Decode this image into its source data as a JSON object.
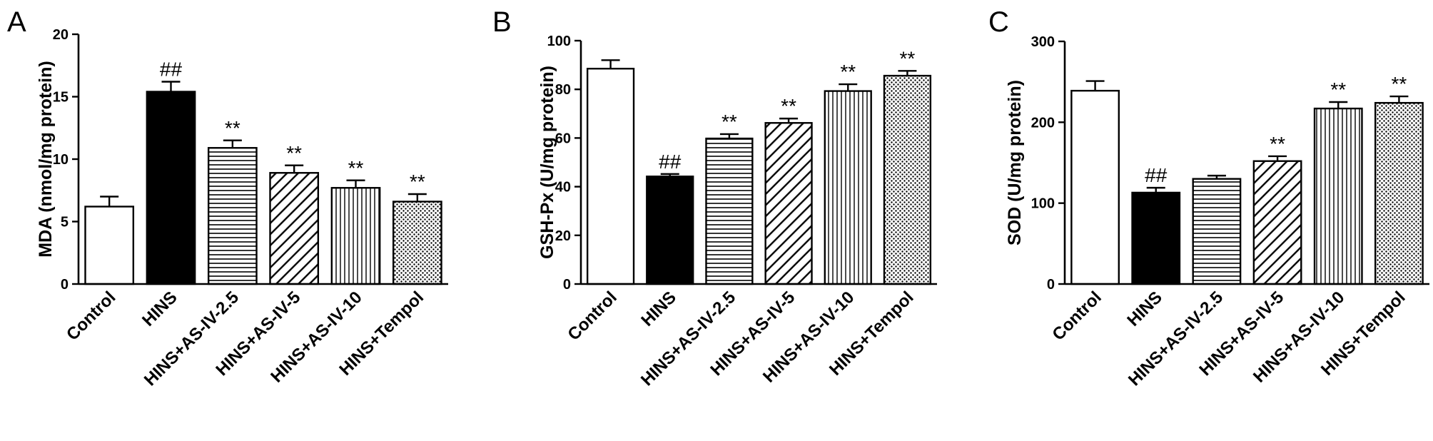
{
  "chart_data": [
    {
      "type": "bar",
      "panel": "A",
      "ylabel": "MDA (nmol/mg protein)",
      "ylim": [
        0,
        20
      ],
      "yticks": [
        0,
        5,
        10,
        15,
        20
      ],
      "categories": [
        "Control",
        "HINS",
        "HINS+AS-IV-2.5",
        "HINS+AS-IV-5",
        "HINS+AS-IV-10",
        "HINS+Tempol"
      ],
      "values": [
        6.2,
        15.4,
        10.9,
        8.9,
        7.7,
        6.6
      ],
      "errors": [
        0.8,
        0.8,
        0.6,
        0.6,
        0.6,
        0.6
      ],
      "annotations": [
        "",
        "##",
        "**",
        "**",
        "**",
        "**"
      ],
      "fills": [
        "white",
        "black",
        "horizontal-lines",
        "diagonal-lines",
        "vertical-lines",
        "dots"
      ],
      "grid": false
    },
    {
      "type": "bar",
      "panel": "B",
      "ylabel": "GSH-Px (U/mg protein)",
      "ylim": [
        0,
        100
      ],
      "yticks": [
        0,
        20,
        40,
        60,
        80,
        100
      ],
      "categories": [
        "Control",
        "HINS",
        "HINS+AS-IV-2.5",
        "HINS+AS-IV-5",
        "HINS+AS-IV-10",
        "HINS+Tempol"
      ],
      "values": [
        88.5,
        44.2,
        59.8,
        66.2,
        79.3,
        85.6
      ],
      "errors": [
        3.5,
        1.0,
        1.8,
        1.8,
        2.8,
        2.0
      ],
      "annotations": [
        "",
        "##",
        "**",
        "**",
        "**",
        "**"
      ],
      "fills": [
        "white",
        "black",
        "horizontal-lines",
        "diagonal-lines",
        "vertical-lines",
        "dots"
      ],
      "grid": false
    },
    {
      "type": "bar",
      "panel": "C",
      "ylabel": "SOD (U/mg protein)",
      "ylim": [
        0,
        300
      ],
      "yticks": [
        0,
        100,
        200,
        300
      ],
      "categories": [
        "Control",
        "HINS",
        "HINS+AS-IV-2.5",
        "HINS+AS-IV-5",
        "HINS+AS-IV-10",
        "HINS+Tempol"
      ],
      "values": [
        239,
        113,
        130,
        152,
        217,
        224
      ],
      "errors": [
        12,
        6,
        4,
        6,
        8,
        8
      ],
      "annotations": [
        "",
        "##",
        "",
        "**",
        "**",
        "**"
      ],
      "fills": [
        "white",
        "black",
        "horizontal-lines",
        "diagonal-lines",
        "vertical-lines",
        "dots"
      ],
      "grid": false
    }
  ]
}
